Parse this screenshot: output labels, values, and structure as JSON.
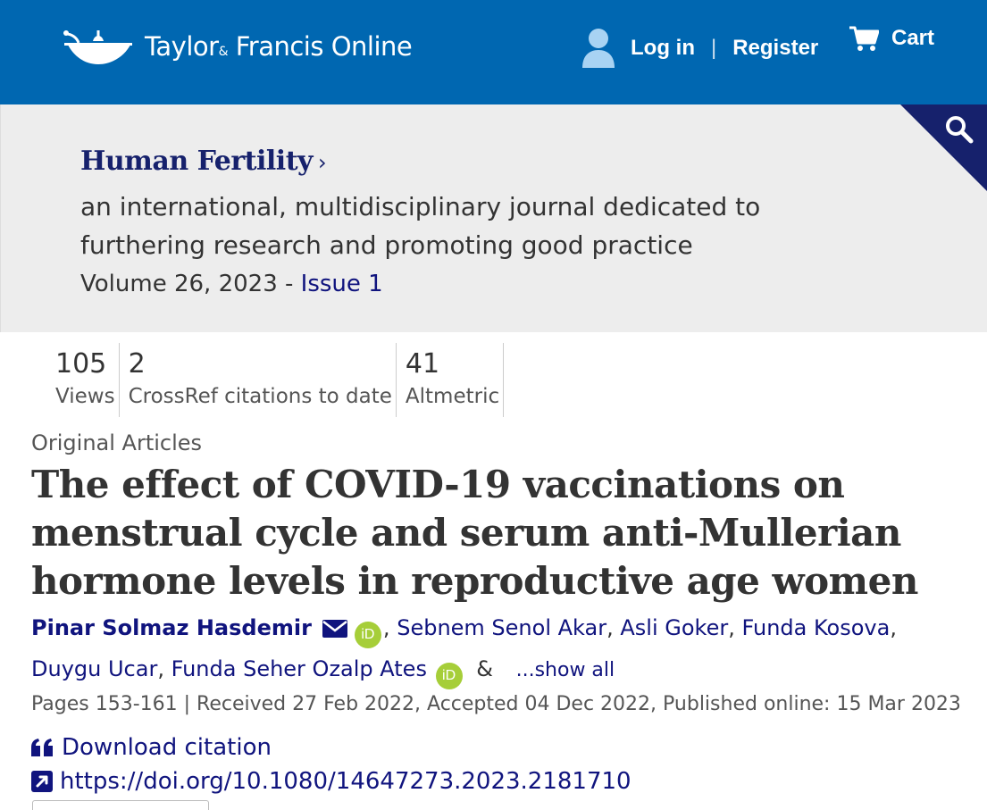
{
  "header": {
    "logo_text_main": "Taylor",
    "logo_text_amp": "&",
    "logo_text_rest": " Francis Online",
    "login": "Log in",
    "separator": "|",
    "register": "Register",
    "cart": "Cart"
  },
  "journal": {
    "title": "Human Fertility",
    "chevron": "›",
    "subtitle": "an international, multidisciplinary journal dedicated to furthering research and promoting good practice",
    "volume": "Volume 26, 2023 - ",
    "issue": "Issue 1"
  },
  "metrics": [
    {
      "value": "105",
      "label": "Views"
    },
    {
      "value": "2",
      "label": "CrossRef citations to date"
    },
    {
      "value": "41",
      "label": "Altmetric"
    }
  ],
  "article": {
    "type": "Original Articles",
    "title": "The effect of COVID-19 vaccinations on menstrual cycle and serum anti-Mullerian hormone levels in reproductive age women",
    "authors": {
      "a1": "Pinar Solmaz Hasdemir",
      "a2": "Sebnem Senol Akar",
      "a3": "Asli Goker",
      "a4": "Funda Kosova",
      "a5": "Duygu Ucar",
      "a6": "Funda Seher Ozalp Ates",
      "comma": ",",
      "amp": "&",
      "orcid": "iD",
      "show_all": "...show all"
    },
    "pubinfo": "Pages 153-161 | Received 27 Feb 2022, Accepted 04 Dec 2022, Published online: 15 Mar 2023",
    "download_citation": "Download citation",
    "doi": "https://doi.org/10.1080/14647273.2023.2181710"
  },
  "colors": {
    "header_blue": "#0067b1",
    "navy": "#16216c",
    "link": "#10147e",
    "orcid_green": "#a6ce39",
    "band_gray": "#ededed"
  }
}
